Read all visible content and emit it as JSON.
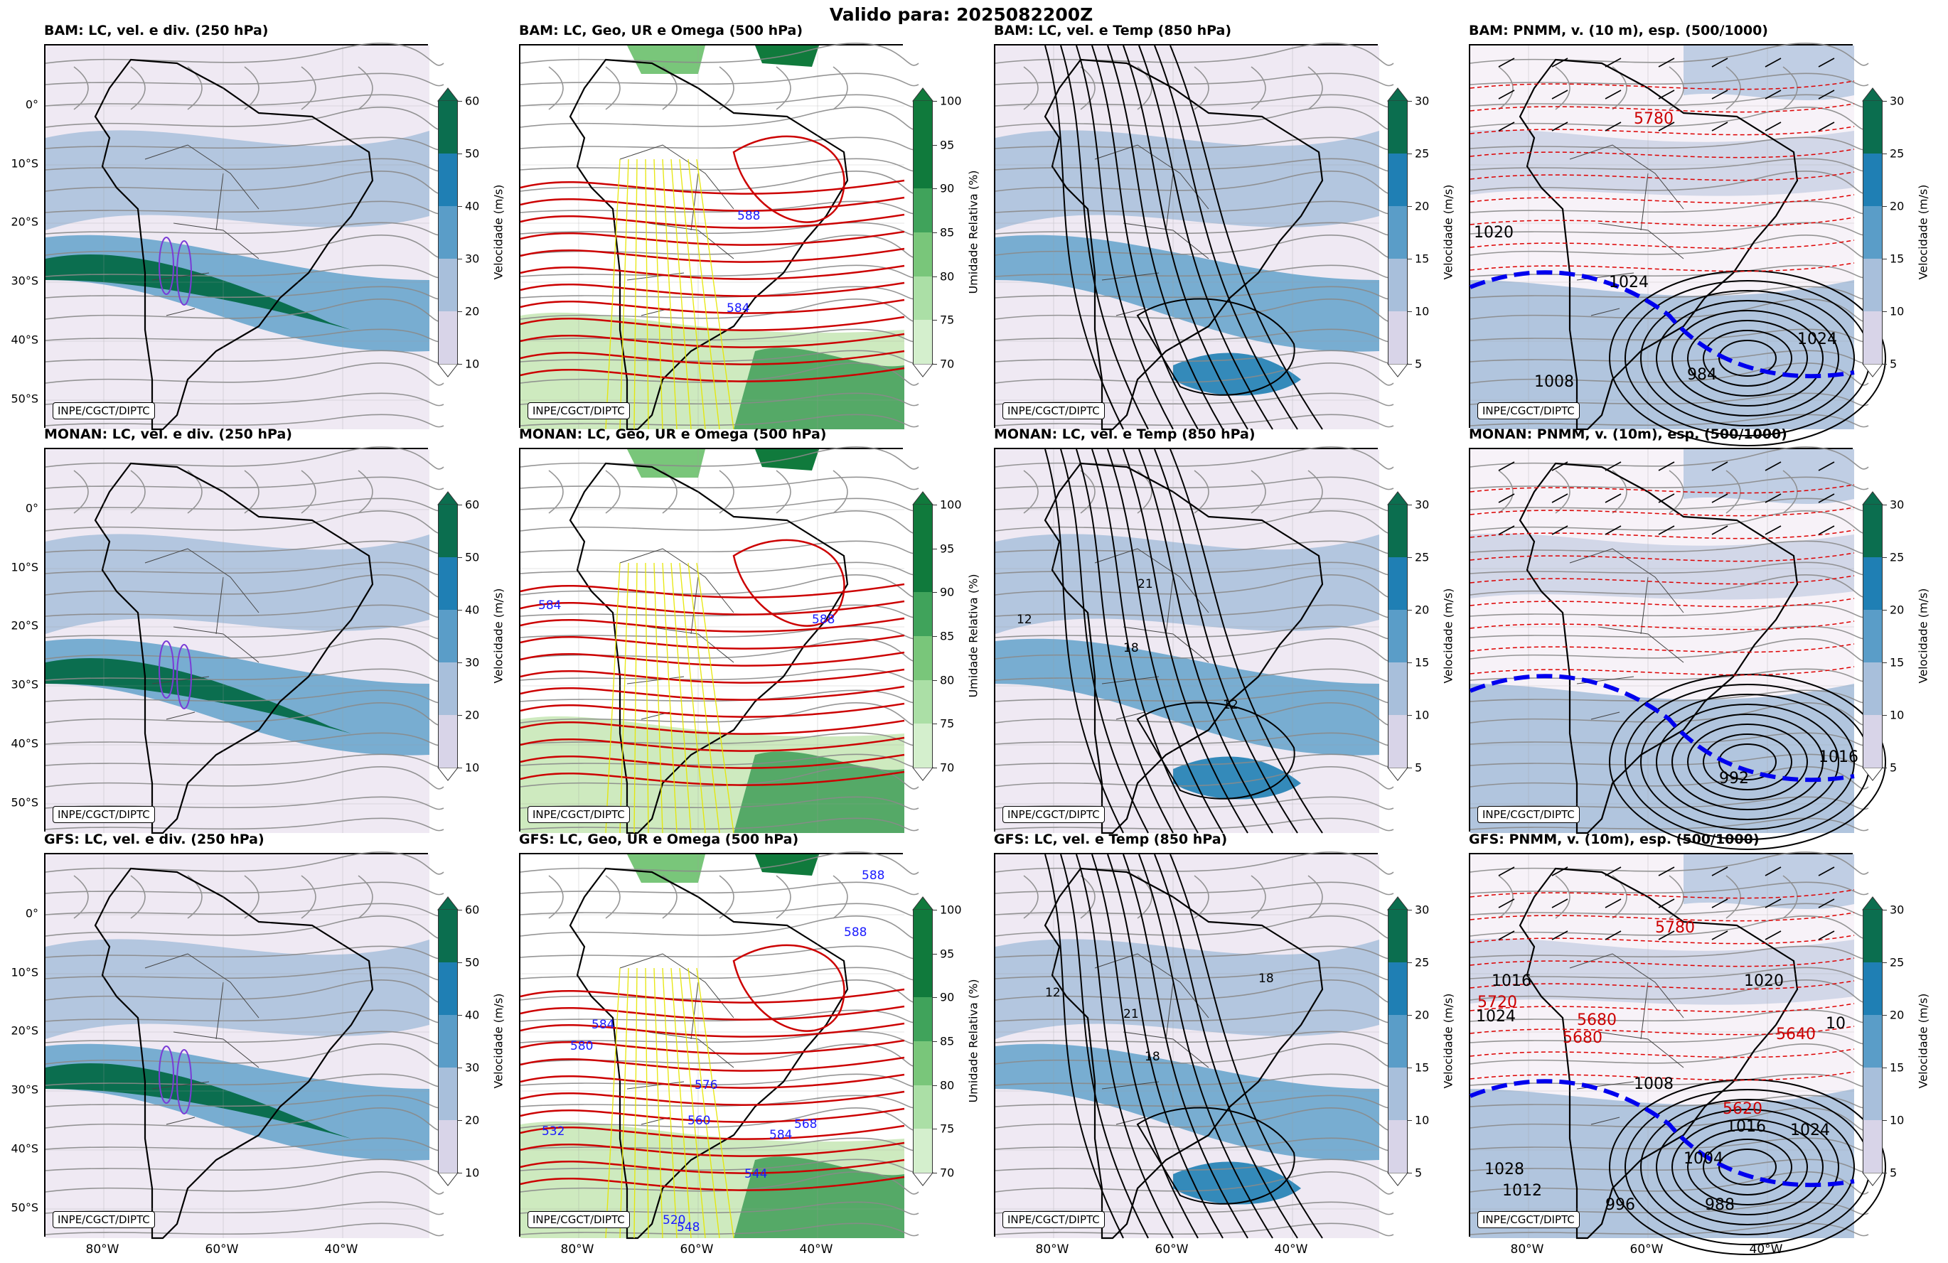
{
  "suptitle": "Valido para: 2025082200Z",
  "credit": "INPE/CGCT/DIPTC",
  "y_axis_labels": [
    "0°",
    "10°S",
    "20°S",
    "30°S",
    "40°S",
    "50°S"
  ],
  "x_axis_labels": [
    "80°W",
    "60°W",
    "40°W"
  ],
  "panels": {
    "r0c0": "BAM: LC, vel. e div. (250 hPa)",
    "r0c1": "BAM: LC, Geo, UR e Omega (500 hPa)",
    "r0c2": "BAM: LC, vel. e Temp (850 hPa)",
    "r0c3": "BAM: PNMM, v. (10 m), esp. (500/1000)",
    "r1c0": "MONAN: LC, vel. e div. (250 hPa)",
    "r1c1": "MONAN: LC, Geo, UR e Omega (500 hPa)",
    "r1c2": "MONAN: LC, vel. e Temp (850 hPa)",
    "r1c3": "MONAN: PNMM, v. (10m), esp. (500/1000)",
    "r2c0": "GFS: LC, vel. e div. (250 hPa)",
    "r2c1": "GFS: LC, Geo, UR e Omega (500 hPa)",
    "r2c2": "GFS: LC, vel. e Temp (850 hPa)",
    "r2c3": "GFS: PNMM, v. (10m), esp. (500/1000)"
  },
  "colorbars": {
    "vel250": {
      "label": "Velocidade (m/s)",
      "ticks": [
        "10",
        "20",
        "30",
        "40",
        "50",
        "60"
      ],
      "colors": [
        "#f5eef7",
        "#d8d4e8",
        "#a8bfdb",
        "#5a9dc8",
        "#1f7fb4",
        "#0b6e4f"
      ]
    },
    "ur500": {
      "label": "Umidade Relativa (%)",
      "ticks": [
        "70",
        "75",
        "80",
        "85",
        "90",
        "95",
        "100"
      ],
      "colors": [
        "#f3faf0",
        "#d4efcd",
        "#abdfa6",
        "#79c67a",
        "#40a35b",
        "#107a3c"
      ]
    },
    "vel850": {
      "label": "Velocidade (m/s)",
      "ticks": [
        "5",
        "10",
        "15",
        "20",
        "25",
        "30"
      ],
      "colors": [
        "#f5eef7",
        "#d8d4e8",
        "#a8bfdb",
        "#5a9dc8",
        "#1f7fb4",
        "#0b6e4f"
      ]
    }
  },
  "contour_labels": {
    "r0c1": [
      "588",
      "584"
    ],
    "r1c1": [
      "584",
      "588"
    ],
    "r2c1": [
      "588",
      "588",
      "584",
      "580",
      "576",
      "560",
      "584",
      "568",
      "544",
      "532",
      "520",
      "548"
    ],
    "r0c3": [
      "5780",
      "1020",
      "1024",
      "1008",
      "984",
      "1024"
    ],
    "r1c3": [
      "1016",
      "992"
    ],
    "r2c3": [
      "1016",
      "1020",
      "5720",
      "1024",
      "5680",
      "5680",
      "5640",
      "1008",
      "5620",
      "1016",
      "1024",
      "1004",
      "1028",
      "1012",
      "996",
      "988",
      "5780",
      "10"
    ],
    "r1c2": [
      "12",
      "12",
      "18",
      "21"
    ],
    "r2c2": [
      "18",
      "12",
      "21",
      "18"
    ]
  },
  "colors": {
    "geo_contour": "#1a1aff",
    "thick_line": "#cc0000",
    "pnmm_blue": "#0000ee"
  }
}
